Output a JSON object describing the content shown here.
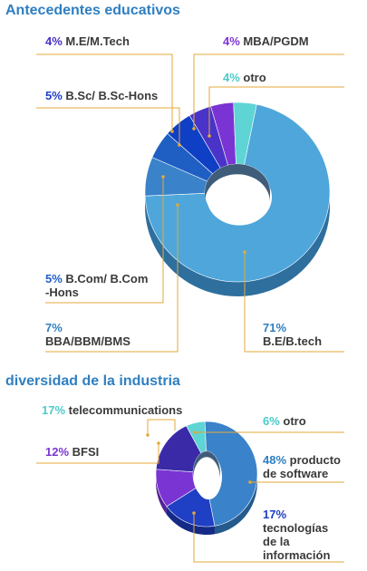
{
  "chart_data": [
    {
      "type": "pie",
      "title": "Antecedentes educativos",
      "series": [
        {
          "label": "B.E/B.tech",
          "value": 71,
          "pct_text": "71%",
          "color": "#4ea6db",
          "side": "#2e6f9e",
          "pct_color": "#2f7fc1"
        },
        {
          "label": "BBA/BBM/BMS",
          "value": 7,
          "pct_text": "7%",
          "color": "#3a82c9",
          "side": "#245a8c",
          "pct_color": "#2f7fc1"
        },
        {
          "label": "B.Com/ B.Com\n-Hons",
          "value": 5,
          "pct_text": "5%",
          "color": "#1f5fc4",
          "side": "#143f86",
          "pct_color": "#1f5fc4"
        },
        {
          "label": "B.Sc/ B.Sc-Hons",
          "value": 5,
          "pct_text": "5%",
          "color": "#0e3fc4",
          "side": "#0a2b86",
          "pct_color": "#1f3fc4"
        },
        {
          "label": "M.E/M.Tech",
          "value": 4,
          "pct_text": "4%",
          "color": "#4a33c8",
          "side": "#32218a",
          "pct_color": "#4a2fc4"
        },
        {
          "label": "MBA/PGDM",
          "value": 4,
          "pct_text": "4%",
          "color": "#7b34d4",
          "side": "#532294",
          "pct_color": "#7b34d4"
        },
        {
          "label": "otro",
          "value": 4,
          "pct_text": "4%",
          "color": "#5fd4d4",
          "side": "#3a9a9a",
          "pct_color": "#4fc9c9"
        }
      ]
    },
    {
      "type": "pie",
      "title": "diversidad de la industria",
      "series": [
        {
          "label": "producto\nde software",
          "value": 48,
          "pct_text": "48%",
          "color": "#3a82c9",
          "side": "#245a8c",
          "pct_color": "#2f7fc1"
        },
        {
          "label": "tecnologías\nde la\ninformación",
          "value": 17,
          "pct_text": "17%",
          "color": "#1f3fc4",
          "side": "#142a86",
          "pct_color": "#1f3fc4"
        },
        {
          "label": "BFSI",
          "value": 12,
          "pct_text": "12%",
          "color": "#7b34d4",
          "side": "#532294",
          "pct_color": "#7b34d4"
        },
        {
          "label": "telecommunications",
          "value": 17,
          "pct_text": "17%",
          "color": "#3a2aa8",
          "side": "#241a6e",
          "pct_color": "#4fc9c9"
        },
        {
          "label": "otro",
          "value": 6,
          "pct_text": "6%",
          "color": "#5fd4d4",
          "side": "#3a9a9a",
          "pct_color": "#4fc9c9"
        }
      ]
    }
  ]
}
